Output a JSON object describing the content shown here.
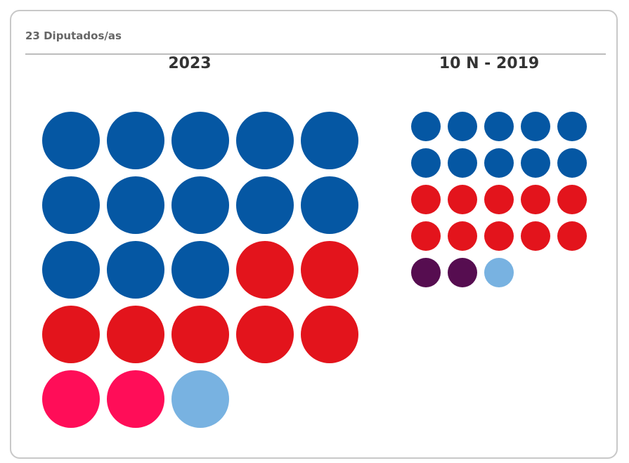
{
  "card": {
    "header": "23 Diputados/as"
  },
  "colors": {
    "blue": "#0557a3",
    "red": "#e3141c",
    "pink": "#ff0d58",
    "light_blue": "#78b2e1",
    "purple": "#560d50"
  },
  "chart_data": [
    {
      "type": "waffle",
      "title": "2023",
      "total_seats": 23,
      "columns": 5,
      "segments": [
        {
          "color": "#0557a3",
          "seats": 13
        },
        {
          "color": "#e3141c",
          "seats": 7
        },
        {
          "color": "#ff0d58",
          "seats": 2
        },
        {
          "color": "#78b2e1",
          "seats": 1
        }
      ]
    },
    {
      "type": "waffle",
      "title": "10 N - 2019",
      "total_seats": 23,
      "columns": 5,
      "segments": [
        {
          "color": "#0557a3",
          "seats": 10
        },
        {
          "color": "#e3141c",
          "seats": 10
        },
        {
          "color": "#560d50",
          "seats": 2
        },
        {
          "color": "#78b2e1",
          "seats": 1
        }
      ]
    }
  ]
}
